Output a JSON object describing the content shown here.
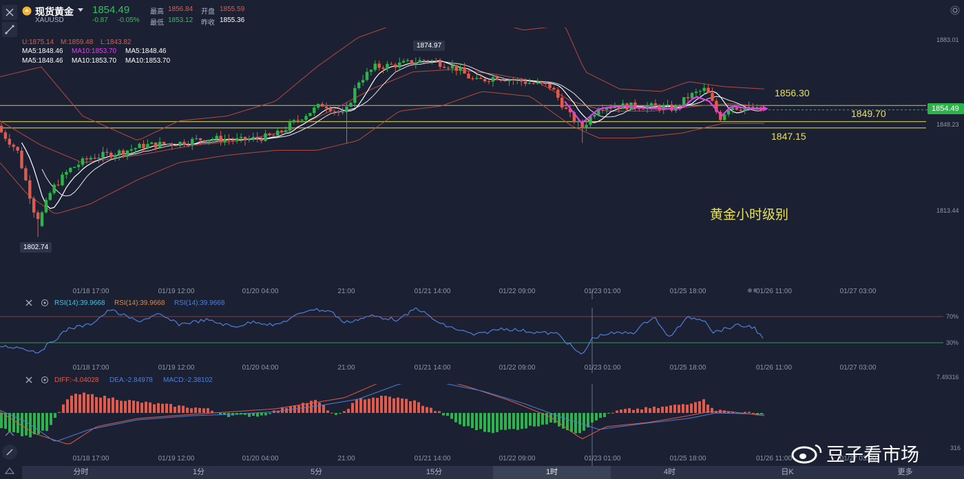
{
  "header": {
    "symbol_name": "现货黄金",
    "symbol_code": "XAUUSD",
    "price": "1854.49",
    "change": "-0.87",
    "change_pct": "-0.05%",
    "high_label": "最高",
    "high_value": "1856.84",
    "low_label": "最低",
    "low_value": "1853.12",
    "open_label": "开盘",
    "open_value": "1855.59",
    "prev_close_label": "昨收",
    "prev_close_value": "1855.36"
  },
  "main_indicators": {
    "boll": {
      "u": "U:1875.14",
      "m": "M:1859.48",
      "l": "L:1843.82"
    },
    "ma_row1": {
      "ma5": "MA5:1848.46",
      "ma10": "MA10:1853.70",
      "ma5b": "MA5:1848.46"
    },
    "ma_row2": {
      "ma5": "MA5:1848.46",
      "ma10": "MA10:1853.70",
      "ma10b": "MA10:1853.70"
    }
  },
  "price_axis": {
    "labels": [
      {
        "text": "1883.01",
        "value": 1883.01
      },
      {
        "text": "1848.23",
        "value": 1848.23
      },
      {
        "text": "1813.44",
        "value": 1813.44
      }
    ],
    "current_price_tag": "1854.49"
  },
  "annotations": {
    "level_1856": "1856.30",
    "level_1849": "1849.70",
    "level_1847": "1847.15",
    "title": "黄金小时级别",
    "high_marker": "1874.97",
    "low_marker": "1802.74"
  },
  "time_axis": [
    "01/18 17:00",
    "01/19 12:00",
    "01/20 04:00",
    "21:00",
    "01/21 14:00",
    "01/22 09:00",
    "01/23 01:00",
    "01/25 18:00",
    "01/26 11:00",
    "01/27 03:00"
  ],
  "rsi_panel": {
    "label1": "RSI(14):39.9668",
    "label2": "RSI(14):39.9668",
    "label3": "RSI(14):39.9668",
    "level_70": "70%",
    "level_30": "30%"
  },
  "macd_panel": {
    "diff": "DIFF:-4.04028",
    "dea": "DEA:-2.84978",
    "macd": "MACD:-2.38102",
    "axis_top": "7.49316",
    "axis_bottom": "316"
  },
  "timeframe_tabs": [
    {
      "label": "分时",
      "active": false
    },
    {
      "label": "1分",
      "active": false
    },
    {
      "label": "5分",
      "active": false
    },
    {
      "label": "15分",
      "active": false
    },
    {
      "label": "1时",
      "active": true
    },
    {
      "label": "4时",
      "active": false
    },
    {
      "label": "日K",
      "active": false
    },
    {
      "label": "更多",
      "active": false
    }
  ],
  "watermark": "豆子看市场",
  "colors": {
    "background": "#1b2133",
    "up": "#2db34a",
    "down": "#e35a4a",
    "yellow_line": "#e8e25a",
    "magenta": "#e040e8",
    "rsi_line": "#4f7fd6"
  },
  "icons": {
    "close": "close-icon",
    "draw": "draw-line-icon",
    "gold_coin": "gold-coin-icon",
    "dropdown": "chevron-down-icon",
    "settings": "settings-icon"
  }
}
